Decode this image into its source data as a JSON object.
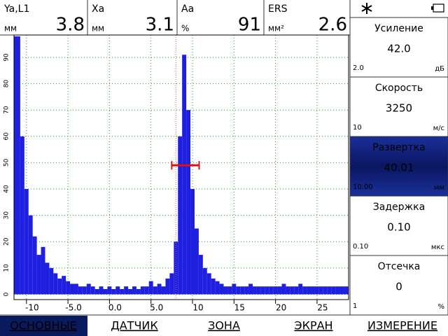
{
  "readouts": [
    {
      "label": "Ya,L1",
      "unit": "мм",
      "value": "3.8"
    },
    {
      "label": "Xa",
      "unit": "мм",
      "value": "3.1"
    },
    {
      "label": "Aa",
      "unit": "%",
      "value": "91"
    },
    {
      "label": "ERS",
      "unit": "мм²",
      "value": "2.6"
    }
  ],
  "parameters": [
    {
      "name": "Усиление",
      "value": "42.0",
      "step": "2.0",
      "unit": "дБ"
    },
    {
      "name": "Скорость",
      "value": "3250",
      "step": "10",
      "unit": "м/с"
    },
    {
      "name": "Развертка",
      "value": "40.01",
      "step": "10.00",
      "unit": "мм",
      "selected": true
    },
    {
      "name": "Задержка",
      "value": "0.10",
      "step": "0.10",
      "unit": "мкс"
    },
    {
      "name": "Отсечка",
      "value": "0",
      "step": "1",
      "unit": "%"
    }
  ],
  "menu": [
    {
      "label": "ОСНОВНЫЕ",
      "selected": true
    },
    {
      "label": "ДАТЧИК"
    },
    {
      "label": "ЗОНА"
    },
    {
      "label": "ЭКРАН"
    },
    {
      "label": "ИЗМЕРЕНИЕ"
    }
  ],
  "chart_data": {
    "type": "bar",
    "color": "#1f1fe0",
    "grid": true,
    "xlim": [
      -11.5,
      28.8
    ],
    "ylim": [
      -2,
      98.5
    ],
    "xticks": [
      {
        "value": -10,
        "label": "-10"
      },
      {
        "value": -5,
        "label": "-5.0"
      },
      {
        "value": 0,
        "label": "0.0"
      },
      {
        "value": 5,
        "label": "5.0"
      },
      10,
      15,
      20,
      25
    ],
    "yticks": [
      0,
      10,
      20,
      30,
      40,
      50,
      60,
      70,
      80,
      90
    ],
    "x": [
      -11.5,
      -11,
      -10.5,
      -10,
      -9.5,
      -9,
      -8.5,
      -8,
      -7.5,
      -7,
      -6.5,
      -6,
      -5.5,
      -5,
      -4.5,
      -4,
      -3.5,
      -3,
      -2.5,
      -2,
      -1.5,
      -1,
      -0.5,
      0,
      0.5,
      1,
      1.5,
      2,
      2.5,
      3,
      3.5,
      4,
      4.5,
      5,
      5.5,
      6,
      6.5,
      7,
      7.5,
      8,
      8.5,
      9,
      9.5,
      10,
      10.5,
      11,
      11.5,
      12,
      12.5,
      13,
      13.5,
      14,
      14.5,
      15,
      15.5,
      16,
      16.5,
      17,
      17.5,
      18,
      18.5,
      19,
      19.5,
      20,
      20.5,
      21,
      21.5,
      22,
      22.5,
      23,
      23.5,
      24,
      24.5,
      25,
      25.5,
      26,
      26.5,
      27,
      27.5,
      28,
      28.5
    ],
    "values": [
      98,
      98,
      60,
      40,
      30,
      22,
      15,
      18,
      12,
      10,
      8,
      6,
      7,
      5,
      4,
      4,
      3,
      3,
      4,
      3,
      2,
      3,
      2,
      3,
      2,
      3,
      2,
      3,
      2,
      3,
      2,
      3,
      3,
      5,
      3,
      4,
      3,
      6,
      8,
      20,
      60,
      91,
      70,
      40,
      25,
      15,
      10,
      8,
      6,
      5,
      4,
      3,
      3,
      4,
      3,
      3,
      3,
      4,
      3,
      3,
      3,
      3,
      3,
      3,
      3,
      4,
      3,
      3,
      3,
      4,
      3,
      3,
      3,
      3,
      3,
      3,
      3,
      3,
      3,
      3,
      3
    ],
    "gate": {
      "start": 7.5,
      "end": 10.8,
      "level": 49,
      "color": "#e01010"
    },
    "cursor_x": 8.0
  }
}
